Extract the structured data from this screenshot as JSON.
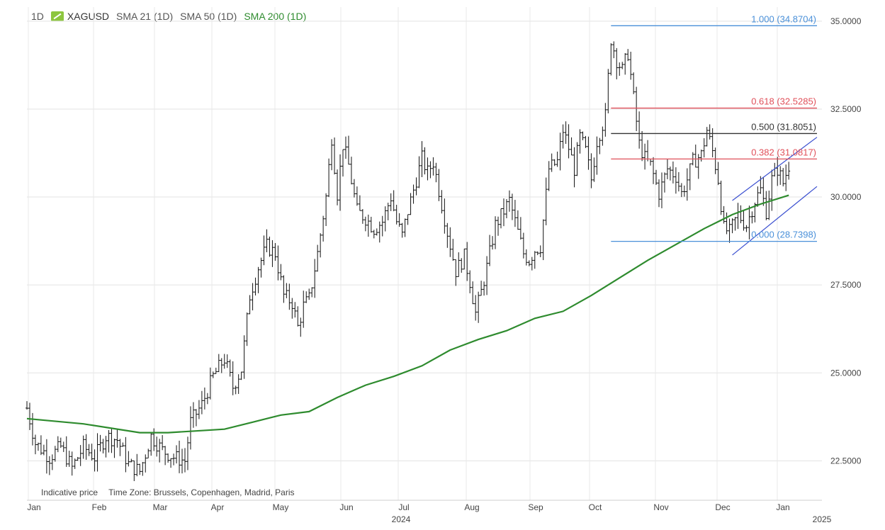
{
  "header": {
    "interval": "1D",
    "symbol": "XAGUSD",
    "indicators": [
      "SMA 21 (1D)",
      "SMA 50 (1D)",
      "SMA 200 (1D)"
    ],
    "indicator_colors": [
      "#555555",
      "#555555",
      "#2e8b2e"
    ]
  },
  "footer": {
    "indicative": "Indicative price",
    "timezone": "Time Zone: Brussels, Copenhagen, Madrid, Paris"
  },
  "chart_data": {
    "type": "candlestick",
    "symbol": "XAGUSD",
    "ylim": [
      21.5,
      35.4
    ],
    "y_ticks": [
      22.5,
      25.0,
      27.5,
      30.0,
      32.5,
      35.0
    ],
    "y_tick_labels": [
      "22.5000",
      "25.0000",
      "27.5000",
      "30.0000",
      "32.5000",
      "35.0000"
    ],
    "x_months": [
      "Jan",
      "Feb",
      "Mar",
      "Apr",
      "May",
      "Jun",
      "Jul",
      "Aug",
      "Sep",
      "Oct",
      "Nov",
      "Dec",
      "Jan"
    ],
    "x_year_labels": [
      "2024",
      "2025"
    ],
    "price_close_path": [
      [
        0,
        24.0
      ],
      [
        3,
        23.0
      ],
      [
        8,
        22.6
      ],
      [
        12,
        22.9
      ],
      [
        16,
        22.3
      ],
      [
        20,
        22.9
      ],
      [
        24,
        22.6
      ],
      [
        28,
        23.2
      ],
      [
        32,
        23.1
      ],
      [
        36,
        22.4
      ],
      [
        40,
        22.2
      ],
      [
        44,
        23.2
      ],
      [
        48,
        22.8
      ],
      [
        52,
        22.6
      ],
      [
        56,
        22.5
      ],
      [
        58,
        23.6
      ],
      [
        62,
        24.1
      ],
      [
        66,
        24.9
      ],
      [
        70,
        25.4
      ],
      [
        73,
        24.6
      ],
      [
        76,
        25.1
      ],
      [
        79,
        27.2
      ],
      [
        82,
        28.0
      ],
      [
        85,
        28.6
      ],
      [
        88,
        28.4
      ],
      [
        91,
        27.2
      ],
      [
        94,
        27.0
      ],
      [
        96,
        26.3
      ],
      [
        98,
        26.9
      ],
      [
        100,
        27.1
      ],
      [
        103,
        28.4
      ],
      [
        106,
        30.0
      ],
      [
        108,
        31.7
      ],
      [
        110,
        30.1
      ],
      [
        112,
        31.5
      ],
      [
        114,
        30.9
      ],
      [
        117,
        29.6
      ],
      [
        120,
        29.4
      ],
      [
        123,
        29.1
      ],
      [
        126,
        29.3
      ],
      [
        129,
        30.0
      ],
      [
        131,
        29.3
      ],
      [
        133,
        28.9
      ],
      [
        135,
        29.6
      ],
      [
        138,
        30.5
      ],
      [
        140,
        31.1
      ],
      [
        142,
        30.7
      ],
      [
        144,
        31.0
      ],
      [
        146,
        30.2
      ],
      [
        149,
        29.0
      ],
      [
        152,
        27.9
      ],
      [
        155,
        28.3
      ],
      [
        157,
        27.6
      ],
      [
        159,
        26.7
      ],
      [
        161,
        27.3
      ],
      [
        163,
        28.0
      ],
      [
        166,
        29.2
      ],
      [
        169,
        29.6
      ],
      [
        171,
        29.9
      ],
      [
        173,
        29.3
      ],
      [
        176,
        28.4
      ],
      [
        178,
        28.2
      ],
      [
        180,
        28.5
      ],
      [
        182,
        28.6
      ],
      [
        185,
        30.8
      ],
      [
        188,
        31.0
      ],
      [
        190,
        31.9
      ],
      [
        192,
        31.4
      ],
      [
        194,
        30.8
      ],
      [
        196,
        31.7
      ],
      [
        198,
        31.3
      ],
      [
        200,
        30.5
      ],
      [
        202,
        31.6
      ],
      [
        205,
        32.3
      ],
      [
        207,
        34.5
      ],
      [
        209,
        33.9
      ],
      [
        211,
        33.6
      ],
      [
        213,
        34.1
      ],
      [
        215,
        32.8
      ],
      [
        217,
        31.5
      ],
      [
        219,
        31.1
      ],
      [
        221,
        30.9
      ],
      [
        224,
        30.1
      ],
      [
        227,
        30.8
      ],
      [
        230,
        30.6
      ],
      [
        232,
        30.1
      ],
      [
        234,
        30.5
      ],
      [
        236,
        31.0
      ],
      [
        239,
        31.2
      ],
      [
        241,
        31.9
      ],
      [
        243,
        31.3
      ],
      [
        245,
        30.5
      ],
      [
        247,
        29.1
      ],
      [
        249,
        29.0
      ],
      [
        252,
        29.5
      ],
      [
        255,
        29.2
      ],
      [
        258,
        29.9
      ],
      [
        260,
        30.2
      ],
      [
        262,
        29.6
      ],
      [
        264,
        30.5
      ],
      [
        266,
        30.8
      ],
      [
        268,
        30.4
      ],
      [
        270,
        30.9
      ]
    ],
    "series": [
      {
        "name": "SMA 200 (1D)",
        "color": "#2e8b2e",
        "points": [
          [
            0,
            23.7
          ],
          [
            20,
            23.55
          ],
          [
            40,
            23.3
          ],
          [
            50,
            23.3
          ],
          [
            60,
            23.35
          ],
          [
            70,
            23.4
          ],
          [
            80,
            23.6
          ],
          [
            90,
            23.8
          ],
          [
            100,
            23.9
          ],
          [
            110,
            24.3
          ],
          [
            120,
            24.65
          ],
          [
            130,
            24.9
          ],
          [
            140,
            25.2
          ],
          [
            150,
            25.65
          ],
          [
            160,
            25.95
          ],
          [
            170,
            26.2
          ],
          [
            180,
            26.55
          ],
          [
            190,
            26.75
          ],
          [
            200,
            27.2
          ],
          [
            210,
            27.7
          ],
          [
            220,
            28.2
          ],
          [
            230,
            28.65
          ],
          [
            240,
            29.1
          ],
          [
            250,
            29.5
          ],
          [
            260,
            29.8
          ],
          [
            270,
            30.05
          ]
        ]
      }
    ],
    "fibonacci": {
      "levels": [
        {
          "ratio": "1.000",
          "price": 34.8704,
          "label": "1.000 (34.8704)",
          "color": "#4a90d9"
        },
        {
          "ratio": "0.618",
          "price": 32.5285,
          "label": "0.618 (32.5285)",
          "color": "#e0505a"
        },
        {
          "ratio": "0.500",
          "price": 31.8051,
          "label": "0.500 (31.8051)",
          "color": "#333333"
        },
        {
          "ratio": "0.382",
          "price": 31.0817,
          "label": "0.382 (31.0817)",
          "color": "#e0505a"
        },
        {
          "ratio": "0.000",
          "price": 28.7398,
          "label": "0.000 (28.7398)",
          "color": "#4a90d9"
        }
      ],
      "x_start": 207,
      "x_end": 280
    },
    "trend_channel": {
      "color": "#3a4fd0",
      "upper": [
        [
          250,
          29.9
        ],
        [
          280,
          31.7
        ]
      ],
      "lower": [
        [
          250,
          28.35
        ],
        [
          280,
          30.3
        ]
      ]
    },
    "grid": true
  }
}
